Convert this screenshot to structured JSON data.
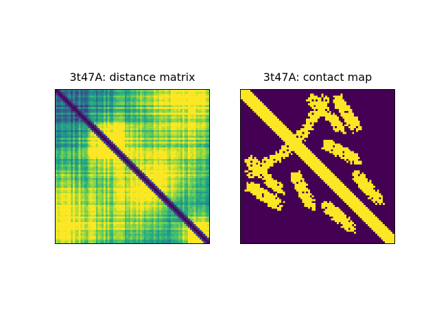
{
  "chart_data": [
    {
      "type": "heatmap",
      "title": "3t47A: distance matrix",
      "rows": 80,
      "cols": 80,
      "colormap": "viridis",
      "axes_ticks": "none",
      "description_of_values": "pairwise residue distance; zero on the main diagonal, bright yellow blobs far from diagonal"
    },
    {
      "type": "heatmap",
      "title": "3t47A: contact map",
      "rows": 80,
      "cols": 80,
      "colormap": "binary viridis (purple=0, yellow=1)",
      "axes_ticks": "none",
      "colors": {
        "off": "#440154",
        "on": "#fde725"
      }
    }
  ]
}
